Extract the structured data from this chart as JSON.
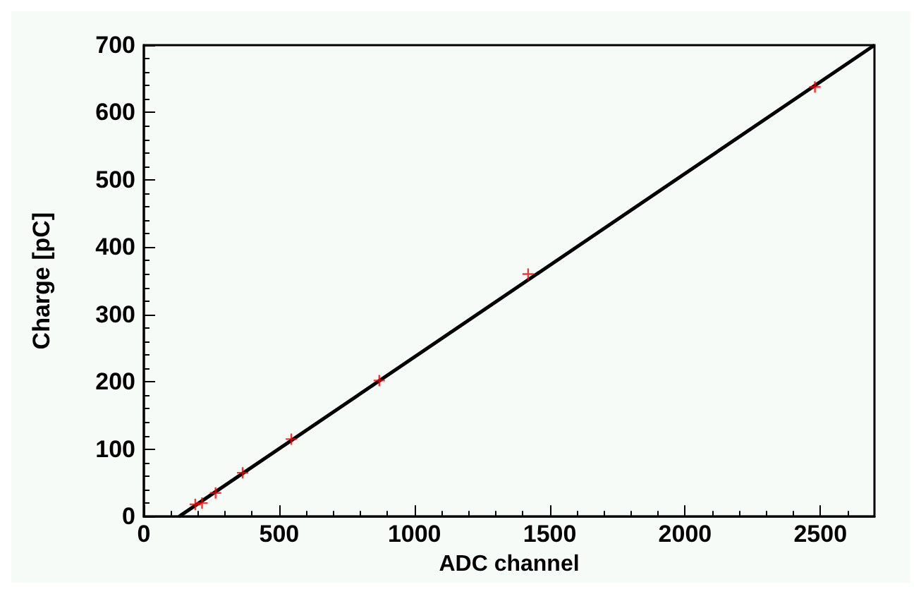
{
  "chart_data": {
    "type": "scatter",
    "xlabel": "ADC channel",
    "ylabel": "Charge [pC]",
    "xlim": [
      0,
      2700
    ],
    "ylim": [
      0,
      700
    ],
    "xticks": [
      0,
      500,
      1000,
      1500,
      2000,
      2500
    ],
    "yticks": [
      0,
      100,
      200,
      300,
      400,
      500,
      600,
      700
    ],
    "grid": false,
    "series": [
      {
        "color": "#ff0000",
        "marker": "cross",
        "x": [
          190,
          215,
          265,
          365,
          545,
          870,
          1420,
          2480
        ],
        "values": [
          18,
          20,
          35,
          65,
          115,
          202,
          360,
          638
        ]
      },
      {
        "type": "line",
        "color": "#000000",
        "x": [
          130,
          2700
        ],
        "values": [
          0,
          700
        ],
        "line_style": "solid"
      }
    ]
  }
}
